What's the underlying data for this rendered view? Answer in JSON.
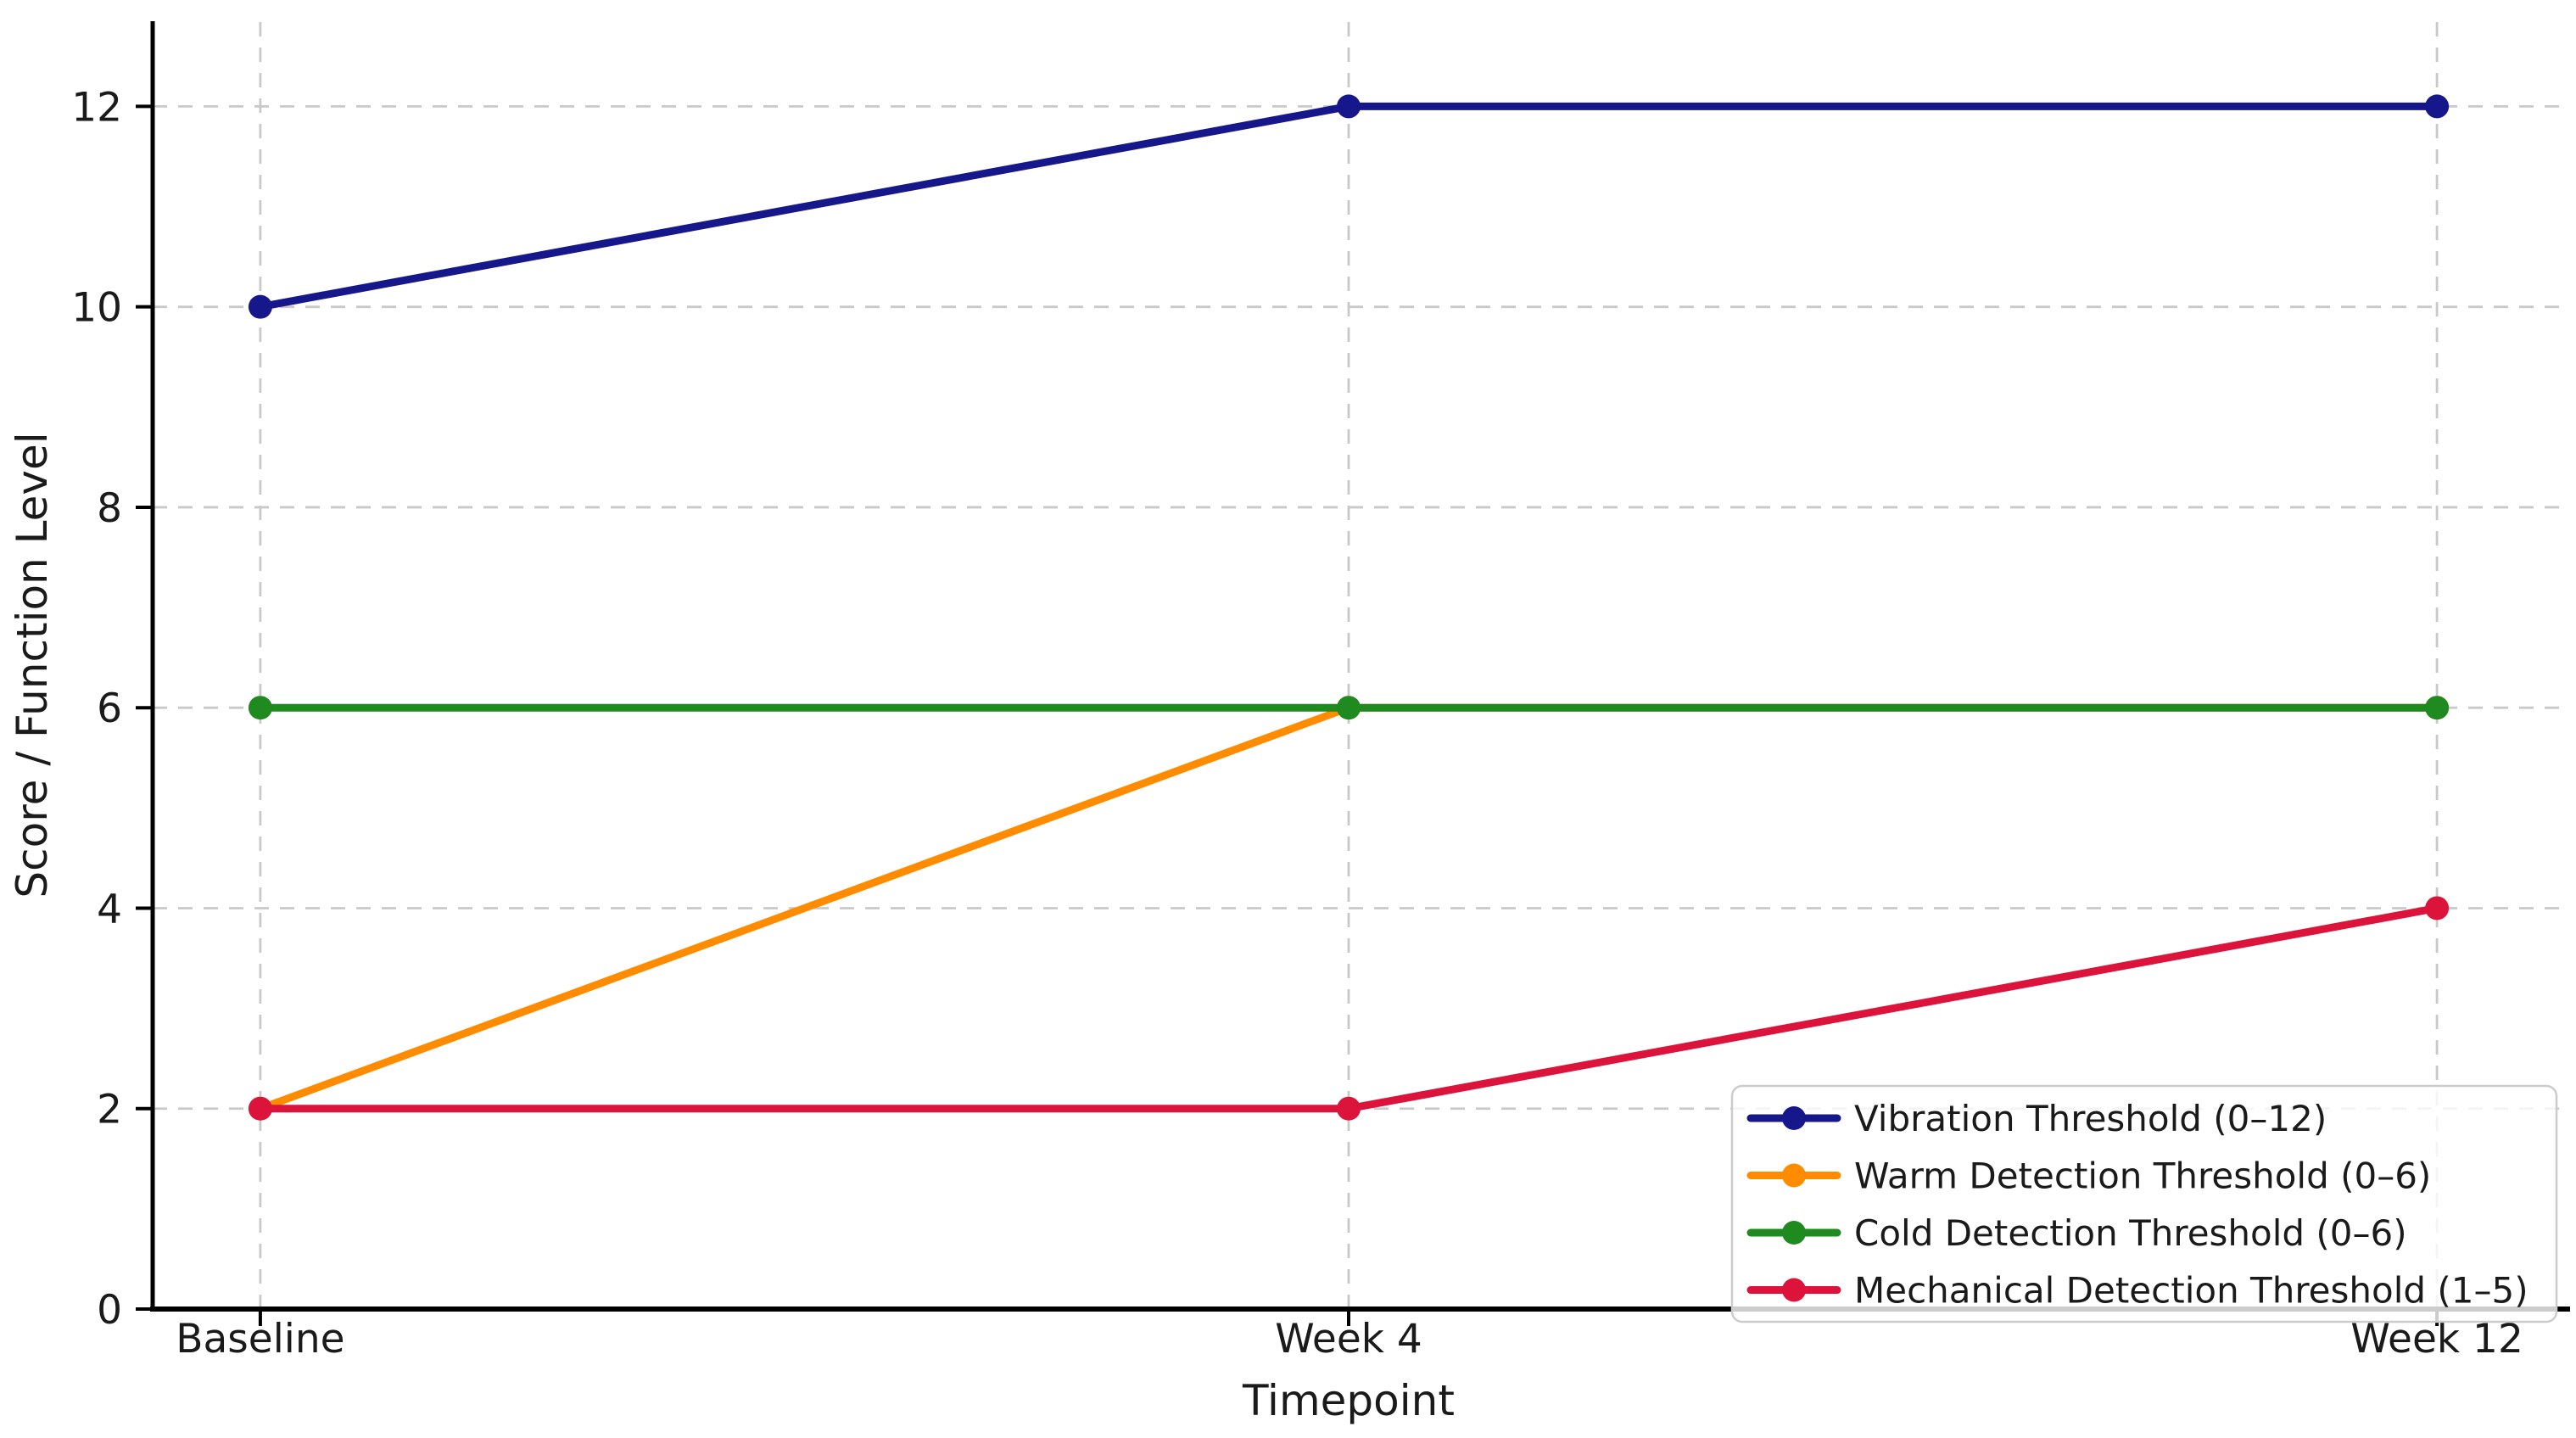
{
  "chart_data": {
    "type": "line",
    "xlabel": "Timepoint",
    "ylabel": "Score / Function Level",
    "categories": [
      "Baseline",
      "Week 4",
      "Week 12"
    ],
    "yticks": [
      0,
      2,
      4,
      6,
      8,
      10,
      12
    ],
    "ylim": [
      0,
      12.85
    ],
    "grid": "dashed-both-axes",
    "grid_color": "#c9c9c9",
    "axis_color": "#000000",
    "text_color": "#1a1a1a",
    "legend_position": "lower right",
    "marker": "o",
    "series": [
      {
        "name": "Vibration Threshold (0–12)",
        "color": "#17178c",
        "values": [
          10,
          12,
          12
        ]
      },
      {
        "name": "Warm Detection Threshold (0–6)",
        "color": "#ff8c00",
        "values": [
          2,
          6,
          6
        ]
      },
      {
        "name": "Cold Detection Threshold (0–6)",
        "color": "#1f8a1f",
        "values": [
          6,
          6,
          6
        ]
      },
      {
        "name": "Mechanical Detection Threshold (1–5)",
        "color": "#dc143c",
        "values": [
          2,
          2,
          4
        ]
      }
    ]
  }
}
